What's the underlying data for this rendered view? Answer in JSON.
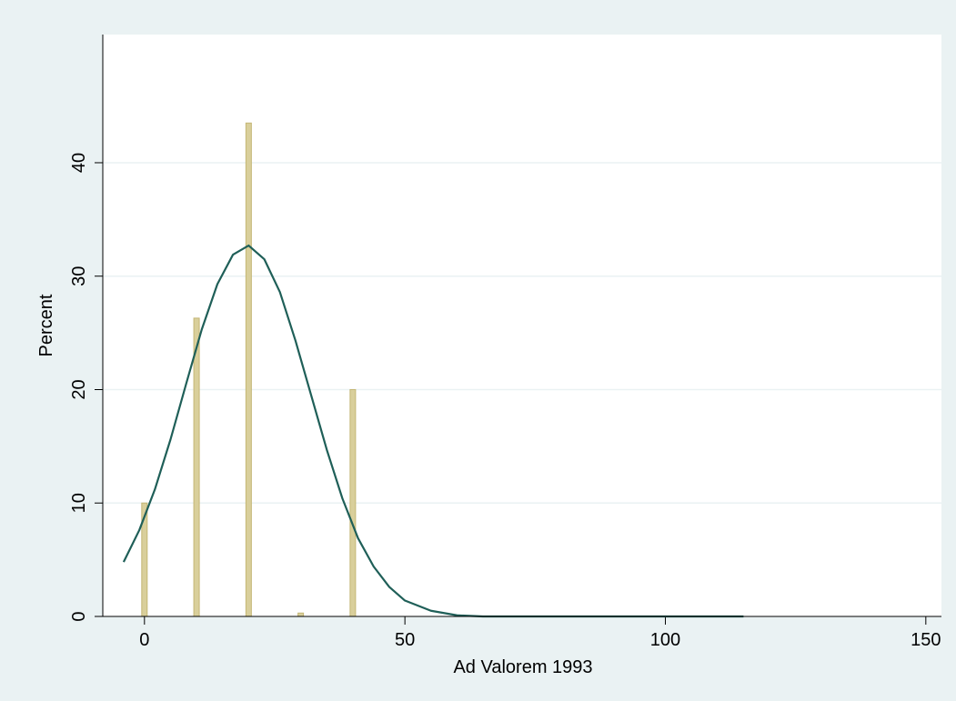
{
  "chart_data": {
    "type": "bar",
    "xlabel": "Ad Valorem 1993",
    "ylabel": "Percent",
    "xlim": [
      -8,
      153
    ],
    "ylim": [
      0,
      51.3
    ],
    "xticks": [
      0,
      50,
      100,
      150
    ],
    "yticks": [
      0,
      10,
      20,
      30,
      40
    ],
    "grid": true,
    "series": [
      {
        "type": "bar",
        "color": "#d9cf9b",
        "edge_color": "#c4b675",
        "x": [
          0,
          10,
          20,
          30,
          40
        ],
        "values": [
          10,
          26.3,
          43.5,
          0.3,
          20
        ]
      },
      {
        "type": "line",
        "color": "#1f5f58",
        "x": [
          -4,
          -1,
          2,
          5,
          8,
          11,
          14,
          17,
          20,
          23,
          26,
          29,
          32,
          35,
          38,
          41,
          44,
          47,
          50,
          55,
          60,
          65,
          70,
          80,
          90,
          100,
          115
        ],
        "values": [
          4.8,
          7.6,
          11.2,
          15.6,
          20.5,
          25.3,
          29.3,
          31.9,
          32.7,
          31.5,
          28.6,
          24.3,
          19.5,
          14.7,
          10.4,
          6.9,
          4.4,
          2.6,
          1.4,
          0.5,
          0.1,
          0,
          0,
          0,
          0,
          0,
          0
        ]
      }
    ]
  }
}
